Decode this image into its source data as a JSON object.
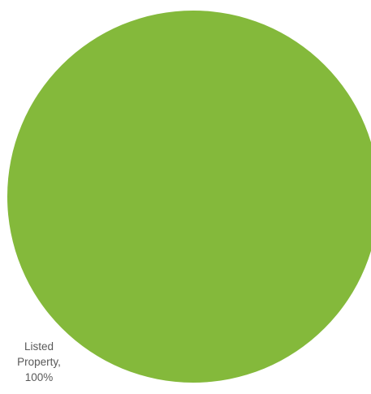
{
  "chart_data": {
    "type": "pie",
    "title": "",
    "slices": [
      {
        "label": "Listed Property",
        "value": 100,
        "label_lines": [
          "Listed",
          "Property,",
          "100%"
        ]
      }
    ],
    "legend": "none",
    "colors": {
      "Listed Property": "#84b93b"
    }
  }
}
